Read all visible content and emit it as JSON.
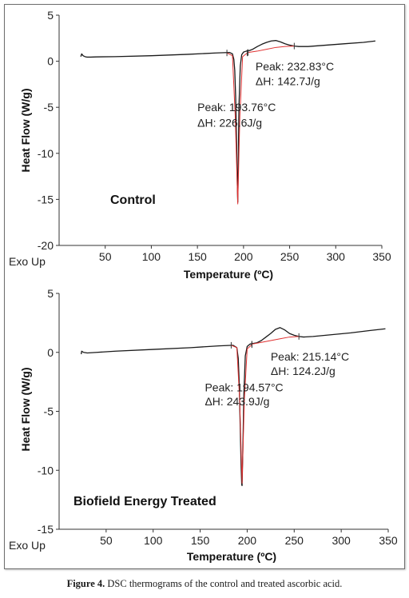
{
  "figure": {
    "caption_label": "Figure 4.",
    "caption_text": " DSC thermograms of the control and treated ascorbic acid."
  },
  "chart_data": [
    {
      "type": "line",
      "panel_label": "Control",
      "xlabel": "Temperature (ºC)",
      "ylabel": "Heat Flow (W/g)",
      "corner_label": "Exo Up",
      "xlim": [
        0,
        350
      ],
      "ylim": [
        -20,
        5
      ],
      "xticks": [
        50,
        100,
        150,
        200,
        250,
        300,
        350
      ],
      "yticks": [
        5,
        0,
        -5,
        -10,
        -15,
        -20
      ],
      "grid": false,
      "series": [
        {
          "color": "#1a1a1a",
          "x": [
            23.5,
            24.5,
            26,
            28,
            30,
            34,
            40,
            60,
            100,
            140,
            170,
            185,
            188,
            189.5,
            190.5,
            191.5,
            192.5,
            193.3,
            193.76,
            194.2,
            195,
            196.5,
            198,
            200,
            203,
            206,
            210,
            215,
            220,
            225,
            230,
            235,
            240,
            245,
            250,
            255,
            260,
            270,
            290,
            310,
            330,
            343
          ],
          "y": [
            0.5,
            0.8,
            0.6,
            0.5,
            0.45,
            0.45,
            0.47,
            0.5,
            0.6,
            0.75,
            0.9,
            0.95,
            0.8,
            0.2,
            -1.0,
            -4.0,
            -9.0,
            -13.5,
            -15.3,
            -12.0,
            -5.0,
            -0.5,
            0.7,
            1.0,
            1.1,
            1.15,
            1.3,
            1.6,
            1.85,
            2.05,
            2.2,
            2.25,
            2.1,
            1.9,
            1.75,
            1.65,
            1.6,
            1.6,
            1.75,
            1.9,
            2.05,
            2.2
          ]
        },
        {
          "color": "#e03030",
          "x": [
            182,
            188,
            191,
            193.76,
            196,
            199,
            204
          ],
          "y": [
            0.9,
            0.6,
            -6.0,
            -15.5,
            -6.0,
            0.5,
            0.9
          ]
        },
        {
          "color": "#e03030",
          "x": [
            205,
            215,
            225,
            235,
            245,
            255
          ],
          "y": [
            0.95,
            1.1,
            1.3,
            1.5,
            1.6,
            1.65
          ]
        }
      ],
      "annotations": [
        {
          "peak": "Peak: 193.76°C",
          "dh": "ΔH: 226.6J/g",
          "x": 150,
          "y_peak": -5.4,
          "y_dh": -7.1
        },
        {
          "peak": "Peak: 232.83°C",
          "dh": "ΔH: 142.7J/g",
          "x": 213,
          "y_peak": -1.0,
          "y_dh": -2.6
        }
      ]
    },
    {
      "type": "line",
      "panel_label": "Biofield Energy Treated",
      "xlabel": "Temperature (ºC)",
      "ylabel": "Heat Flow (W/g)",
      "corner_label": "Exo Up",
      "xlim": [
        0,
        350
      ],
      "ylim": [
        -15,
        5
      ],
      "xticks": [
        50,
        100,
        150,
        200,
        250,
        300,
        350
      ],
      "yticks": [
        5,
        0,
        -5,
        -10,
        -15
      ],
      "grid": false,
      "series": [
        {
          "color": "#1a1a1a",
          "x": [
            23.5,
            24,
            26,
            30,
            40,
            60,
            100,
            140,
            170,
            185,
            189,
            190.5,
            191.5,
            192.5,
            193.5,
            194.2,
            194.57,
            195.2,
            196.5,
            198,
            200,
            203,
            206,
            210,
            215,
            220,
            225,
            230,
            235,
            240,
            245,
            250,
            255,
            260,
            270,
            290,
            310,
            330,
            347
          ],
          "y": [
            -0.15,
            0.1,
            0.0,
            -0.05,
            0.0,
            0.1,
            0.25,
            0.4,
            0.55,
            0.6,
            0.4,
            -0.5,
            -2.5,
            -6.0,
            -9.5,
            -11.2,
            -11.3,
            -9.0,
            -3.5,
            -0.3,
            0.5,
            0.7,
            0.75,
            0.8,
            1.0,
            1.3,
            1.6,
            1.95,
            2.1,
            1.9,
            1.6,
            1.45,
            1.35,
            1.3,
            1.35,
            1.5,
            1.65,
            1.85,
            2.0
          ]
        },
        {
          "color": "#e03030",
          "x": [
            183,
            189,
            192,
            194.57,
            197,
            200,
            205
          ],
          "y": [
            0.6,
            0.4,
            -4.0,
            -11.1,
            -4.0,
            0.3,
            0.65
          ]
        },
        {
          "color": "#e03030",
          "x": [
            205,
            215,
            225,
            235,
            245,
            255
          ],
          "y": [
            0.7,
            0.85,
            1.0,
            1.15,
            1.3,
            1.35
          ]
        }
      ],
      "annotations": [
        {
          "peak": "Peak: 194.57°C",
          "dh": "ΔH: 243.9J/g",
          "x": 155,
          "y_peak": -3.3,
          "y_dh": -4.5
        },
        {
          "peak": "Peak: 215.14°C",
          "dh": "ΔH: 124.2J/g",
          "x": 225,
          "y_peak": -0.7,
          "y_dh": -1.9
        }
      ]
    }
  ]
}
